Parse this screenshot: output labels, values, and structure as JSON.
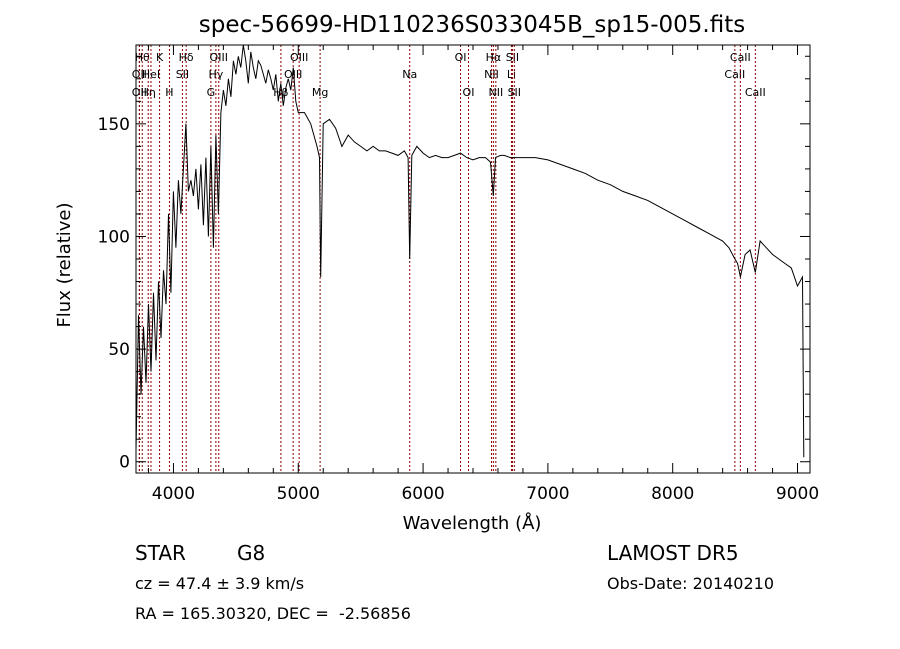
{
  "chart_data": {
    "type": "line",
    "title": "spec-56699-HD110236S033045B_sp15-005.fits",
    "xlabel": "Wavelength (Å)",
    "ylabel": "Flux (relative)",
    "xlim": [
      3700,
      9100
    ],
    "ylim": [
      -5,
      185
    ],
    "x_ticks": [
      4000,
      5000,
      6000,
      7000,
      8000,
      9000
    ],
    "y_ticks": [
      0,
      50,
      100,
      150
    ],
    "grid": false,
    "legend": "none",
    "line_color": "#000000",
    "marker_color": "#8b0000",
    "series": [
      {
        "x": [
          3700,
          3720,
          3740,
          3760,
          3780,
          3800,
          3820,
          3840,
          3860,
          3880,
          3900,
          3920,
          3940,
          3960,
          3980,
          4000,
          4020,
          4040,
          4060,
          4080,
          4100,
          4120,
          4140,
          4160,
          4180,
          4200,
          4220,
          4240,
          4260,
          4280,
          4300,
          4320,
          4340,
          4360,
          4380,
          4400,
          4420,
          4440,
          4460,
          4480,
          4500,
          4520,
          4540,
          4560,
          4580,
          4600,
          4620,
          4640,
          4660,
          4680,
          4700,
          4720,
          4740,
          4760,
          4780,
          4800,
          4820,
          4840,
          4860,
          4880,
          4900,
          4920,
          4940,
          4960,
          4980,
          5000,
          5050,
          5100,
          5150,
          5170,
          5180,
          5200,
          5250,
          5300,
          5350,
          5400,
          5450,
          5500,
          5550,
          5600,
          5650,
          5700,
          5750,
          5800,
          5850,
          5880,
          5893,
          5910,
          5950,
          6000,
          6050,
          6100,
          6150,
          6200,
          6250,
          6300,
          6350,
          6400,
          6450,
          6500,
          6540,
          6563,
          6580,
          6620,
          6650,
          6700,
          6800,
          6900,
          7000,
          7100,
          7200,
          7300,
          7400,
          7500,
          7600,
          7700,
          7800,
          7900,
          8000,
          8100,
          8200,
          8300,
          8400,
          8450,
          8498,
          8520,
          8542,
          8580,
          8620,
          8662,
          8700,
          8750,
          8800,
          8850,
          8900,
          8950,
          9000,
          9020,
          9040,
          9050
        ],
        "y": [
          5,
          65,
          30,
          60,
          35,
          70,
          40,
          75,
          45,
          80,
          55,
          85,
          70,
          110,
          75,
          120,
          95,
          125,
          110,
          130,
          150,
          120,
          125,
          118,
          130,
          112,
          132,
          105,
          135,
          100,
          140,
          95,
          145,
          110,
          155,
          165,
          158,
          170,
          162,
          178,
          172,
          180,
          175,
          185,
          178,
          168,
          182,
          175,
          170,
          178,
          176,
          172,
          168,
          174,
          170,
          165,
          172,
          160,
          168,
          158,
          166,
          170,
          165,
          175,
          160,
          155,
          155,
          150,
          140,
          135,
          82,
          150,
          152,
          148,
          140,
          145,
          142,
          140,
          138,
          140,
          138,
          138,
          137,
          136,
          138,
          135,
          90,
          136,
          140,
          137,
          135,
          136,
          135,
          135,
          136,
          137,
          135,
          134,
          135,
          135,
          133,
          118,
          135,
          136,
          136,
          135,
          135,
          135,
          134,
          132,
          130,
          128,
          125,
          123,
          120,
          118,
          116,
          113,
          110,
          107,
          104,
          101,
          98,
          95,
          90,
          88,
          82,
          92,
          94,
          84,
          98,
          95,
          92,
          90,
          88,
          86,
          78,
          80,
          82,
          2
        ]
      }
    ],
    "line_labels": [
      {
        "wl": 3750,
        "text": "Hθ",
        "row": 1
      },
      {
        "wl": 3727,
        "text": "OII",
        "row": 2
      },
      {
        "wl": 3727,
        "text": "OII",
        "row": 3
      },
      {
        "wl": 3798,
        "text": "Hη",
        "row": 3
      },
      {
        "wl": 3820,
        "text": "HeI",
        "row": 2
      },
      {
        "wl": 3889,
        "text": "K",
        "row": 1
      },
      {
        "wl": 3968,
        "text": "H",
        "row": 3
      },
      {
        "wl": 4072,
        "text": "SII",
        "row": 2
      },
      {
        "wl": 4102,
        "text": "Hδ",
        "row": 1
      },
      {
        "wl": 4300,
        "text": "G",
        "row": 3
      },
      {
        "wl": 4340,
        "text": "Hγ",
        "row": 2
      },
      {
        "wl": 4363,
        "text": "OIII",
        "row": 1
      },
      {
        "wl": 4861,
        "text": "Hβ",
        "row": 3
      },
      {
        "wl": 4959,
        "text": "OIII",
        "row": 2
      },
      {
        "wl": 5007,
        "text": "OIII",
        "row": 1
      },
      {
        "wl": 5175,
        "text": "Mg",
        "row": 3
      },
      {
        "wl": 5893,
        "text": "Na",
        "row": 2
      },
      {
        "wl": 6300,
        "text": "OI",
        "row": 1
      },
      {
        "wl": 6364,
        "text": "OI",
        "row": 3
      },
      {
        "wl": 6548,
        "text": "NII",
        "row": 2
      },
      {
        "wl": 6563,
        "text": "Hα",
        "row": 1
      },
      {
        "wl": 6583,
        "text": "NII",
        "row": 3
      },
      {
        "wl": 6708,
        "text": "Li",
        "row": 2
      },
      {
        "wl": 6716,
        "text": "SII",
        "row": 1
      },
      {
        "wl": 6731,
        "text": "SII",
        "row": 3
      },
      {
        "wl": 8498,
        "text": "CaII",
        "row": 2
      },
      {
        "wl": 8542,
        "text": "CaII",
        "row": 1
      },
      {
        "wl": 8662,
        "text": "CaII",
        "row": 3
      }
    ]
  },
  "info": {
    "object_class": "STAR",
    "subclass": "G8",
    "survey": "LAMOST DR5",
    "redshift_line": "cz = 47.4 ± 3.9 km/s",
    "obs_date_line": "Obs-Date: 20140210",
    "coords_line": "RA = 165.30320, DEC =  -2.56856"
  }
}
